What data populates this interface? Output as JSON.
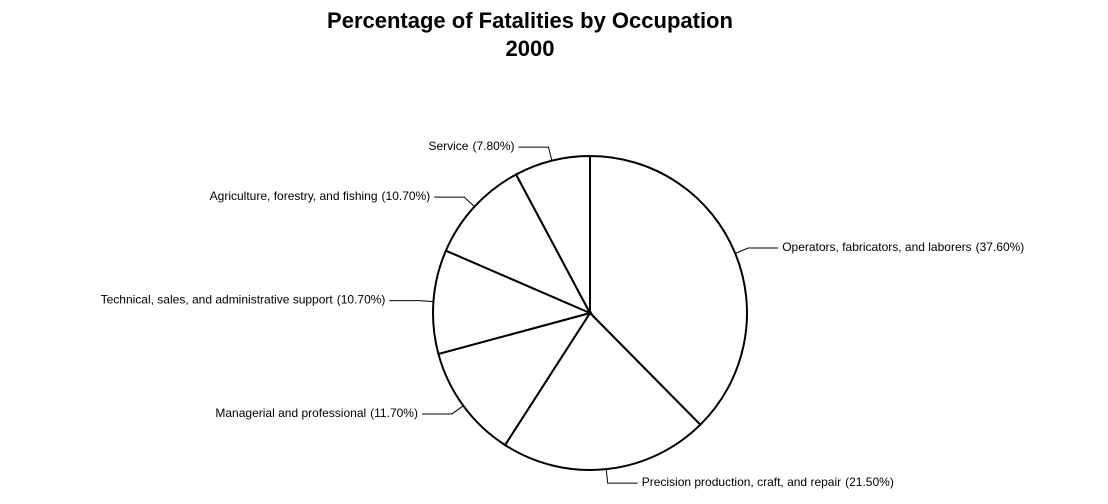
{
  "chart_data": {
    "type": "pie",
    "title": "Percentage of Fatalities by Occupation",
    "subtitle": "2000",
    "categories": [
      "Operators, fabricators, and laborers",
      "Precision production, craft, and repair",
      "Managerial and professional",
      "Technical, sales, and administrative support",
      "Agriculture, forestry, and fishing",
      "Service"
    ],
    "values": [
      37.6,
      21.5,
      11.7,
      10.7,
      10.7,
      7.8
    ],
    "value_labels": [
      "(37.60%)",
      "(21.50%)",
      "(11.70%)",
      "(10.70%)",
      "(10.70%)",
      "(7.80%)"
    ],
    "color": "#ffffff"
  }
}
